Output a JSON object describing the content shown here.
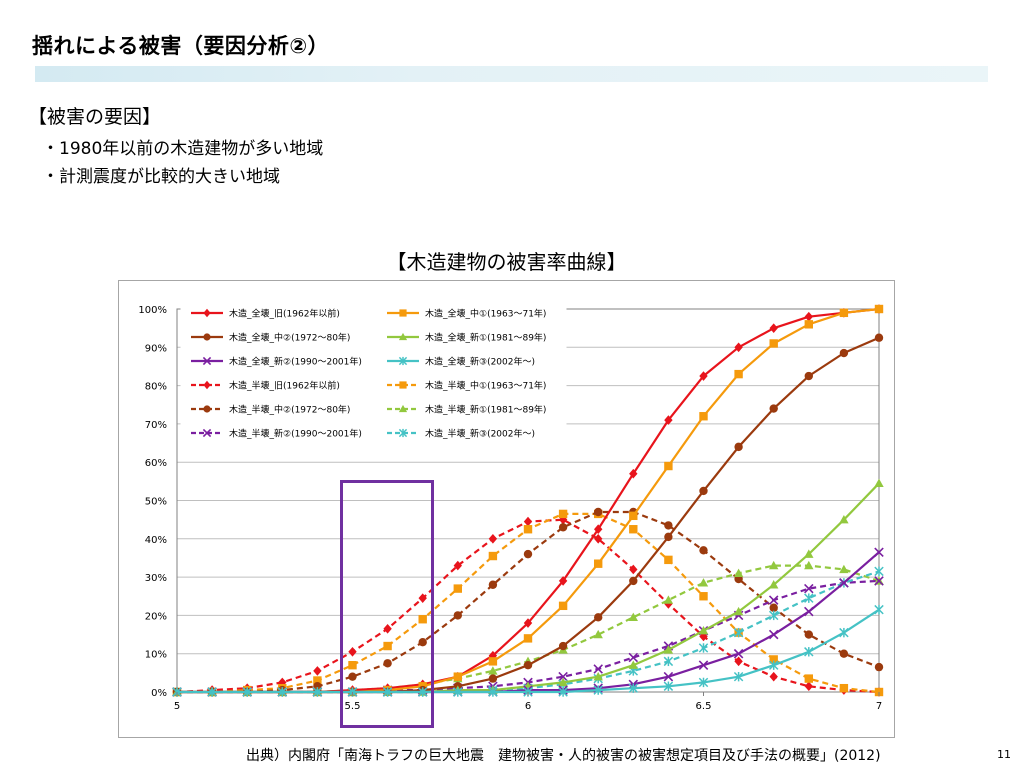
{
  "slide": {
    "title": "揺れによる被害（要因分析②）",
    "cause_heading": "【被害の要因】",
    "bullets": [
      "・1980年以前の木造建物が多い地域",
      "・計測震度が比較的大きい地域"
    ],
    "chart_heading": "【木造建物の被害率曲線】",
    "source": "出典）内閣府「南海トラフの巨大地震　建物被害・人的被害の被害想定項目及び手法の概要」(2012)",
    "page_number": "11",
    "highlight_color": "#7030a0",
    "title_bar_color": "#dcedf3"
  },
  "chart_data": {
    "type": "line",
    "title": "【木造建物の被害率曲線】",
    "xlabel": "",
    "ylabel": "",
    "xlim": [
      5,
      7
    ],
    "ylim": [
      0,
      100
    ],
    "grid": true,
    "legend_position": "top-left",
    "x": [
      5.0,
      5.1,
      5.2,
      5.3,
      5.4,
      5.5,
      5.6,
      5.7,
      5.8,
      5.9,
      6.0,
      6.1,
      6.2,
      6.3,
      6.4,
      6.5,
      6.6,
      6.7,
      6.8,
      6.9,
      7.0
    ],
    "xticks": [
      {
        "value": 5,
        "label": "5"
      },
      {
        "value": 5.5,
        "label": "5.5"
      },
      {
        "value": 6,
        "label": "6"
      },
      {
        "value": 6.5,
        "label": "6.5"
      },
      {
        "value": 7,
        "label": "7"
      }
    ],
    "yticks": [
      {
        "value": 0,
        "label": "0%"
      },
      {
        "value": 10,
        "label": "10%"
      },
      {
        "value": 20,
        "label": "20%"
      },
      {
        "value": 30,
        "label": "30%"
      },
      {
        "value": 40,
        "label": "40%"
      },
      {
        "value": 50,
        "label": "50%"
      },
      {
        "value": 60,
        "label": "60%"
      },
      {
        "value": 70,
        "label": "70%"
      },
      {
        "value": 80,
        "label": "80%"
      },
      {
        "value": 90,
        "label": "90%"
      },
      {
        "value": 100,
        "label": "100%"
      }
    ],
    "series": [
      {
        "name": "木造_全壊_旧(1962年以前)",
        "color": "#e8141c",
        "style": "solid",
        "marker": "diamond",
        "values": [
          0,
          0,
          0,
          0,
          0,
          0.5,
          1,
          2,
          4,
          9.5,
          18,
          29,
          42.5,
          57,
          71,
          82.5,
          90,
          95,
          98,
          99,
          100
        ]
      },
      {
        "name": "木造_全壊_中①(1963～71年)",
        "color": "#f59a0c",
        "style": "solid",
        "marker": "square",
        "values": [
          0,
          0,
          0,
          0,
          0,
          0,
          0.5,
          1.5,
          4,
          8,
          14,
          22.5,
          33.5,
          46,
          59,
          72,
          83,
          91,
          96,
          99,
          100
        ]
      },
      {
        "name": "木造_全壊_中②(1972～80年)",
        "color": "#9b3a0e",
        "style": "solid",
        "marker": "circle",
        "values": [
          0,
          0,
          0,
          0,
          0,
          0,
          0,
          0.5,
          1.5,
          3.5,
          7,
          12,
          19.5,
          29,
          40.5,
          52.5,
          64,
          74,
          82.5,
          88.5,
          92.5
        ]
      },
      {
        "name": "木造_全壊_新①(1981～89年)",
        "color": "#92c83e",
        "style": "solid",
        "marker": "triangle",
        "values": [
          0,
          0,
          0,
          0,
          0,
          0,
          0,
          0,
          0.5,
          0.5,
          1.5,
          2.5,
          4,
          7,
          11,
          16,
          21,
          28,
          36,
          45,
          54.5
        ]
      },
      {
        "name": "木造_全壊_新②(1990～2001年)",
        "color": "#7a1fa0",
        "style": "solid",
        "marker": "x",
        "values": [
          0,
          0,
          0,
          0,
          0,
          0,
          0,
          0,
          0,
          0,
          0.5,
          0.5,
          1,
          2,
          4,
          7,
          10,
          15,
          21,
          28.5,
          36.5
        ]
      },
      {
        "name": "木造_全壊_新③(2002年～)",
        "color": "#45c2c5",
        "style": "solid",
        "marker": "asterisk",
        "values": [
          0,
          0,
          0,
          0,
          0,
          0,
          0,
          0,
          0,
          0,
          0,
          0,
          0.5,
          1,
          1.5,
          2.5,
          4,
          7,
          10.5,
          15.5,
          21.5
        ]
      },
      {
        "name": "木造_半壊_旧(1962年以前)",
        "color": "#e8141c",
        "style": "dashed",
        "marker": "diamond",
        "values": [
          0,
          0.5,
          1,
          2.5,
          5.5,
          10.5,
          16.5,
          24.5,
          33,
          40,
          44.5,
          45,
          40,
          32,
          23,
          14.5,
          8,
          4,
          1.5,
          0.5,
          0
        ]
      },
      {
        "name": "木造_半壊_中①(1963～71年)",
        "color": "#f59a0c",
        "style": "dashed",
        "marker": "square",
        "values": [
          0,
          0,
          0.5,
          1,
          3,
          7,
          12,
          19,
          27,
          35.5,
          42.5,
          46.5,
          46.5,
          42.5,
          34.5,
          25,
          15.5,
          8.5,
          3.5,
          1,
          0
        ]
      },
      {
        "name": "木造_半壊_中②(1972～80年)",
        "color": "#9b3a0e",
        "style": "dashed",
        "marker": "circle",
        "values": [
          0,
          0,
          0,
          0.5,
          1.5,
          4,
          7.5,
          13,
          20,
          28,
          36,
          43,
          47,
          47,
          43.5,
          37,
          29.5,
          22,
          15,
          10,
          6.5
        ]
      },
      {
        "name": "木造_半壊_新①(1981～89年)",
        "color": "#92c83e",
        "style": "dashed",
        "marker": "triangle",
        "values": [
          0,
          0,
          0,
          0,
          0,
          0.5,
          1,
          2,
          3.5,
          5.5,
          8,
          11,
          15,
          19.5,
          24,
          28.5,
          31,
          33,
          33,
          32,
          29
        ]
      },
      {
        "name": "木造_半壊_新②(1990～2001年)",
        "color": "#7a1fa0",
        "style": "dashed",
        "marker": "x",
        "values": [
          0,
          0,
          0,
          0,
          0,
          0,
          0.5,
          0.5,
          1,
          1.5,
          2.5,
          4,
          6,
          9,
          12,
          16,
          20,
          24,
          27,
          28.5,
          29
        ]
      },
      {
        "name": "木造_半壊_新③(2002年～)",
        "color": "#45c2c5",
        "style": "dashed",
        "marker": "asterisk",
        "values": [
          0,
          0,
          0,
          0,
          0,
          0,
          0,
          0,
          0.5,
          0.5,
          1,
          2,
          3.5,
          5.5,
          8,
          11.5,
          15.5,
          20,
          24.5,
          28.5,
          31.5
        ]
      }
    ]
  }
}
